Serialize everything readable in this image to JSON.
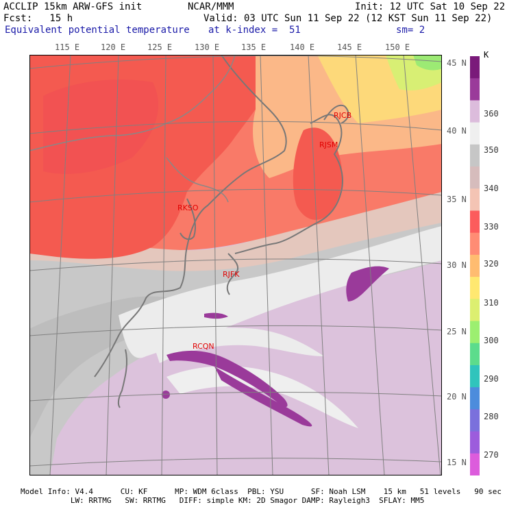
{
  "header": {
    "line1_left": "ACCLIP 15km ARW-GFS init",
    "line1_center": "NCAR/MMM",
    "line1_right": "Init: 12 UTC Sat 10 Sep 22",
    "line2_left": "Fcst:   15 h",
    "line2_right": "Valid: 03 UTC Sun 11 Sep 22 (12 KST Sun 11 Sep 22)",
    "line3_left": "Equivalent potential temperature",
    "line3_center": "at k-index =  51",
    "line3_right": "sm= 2"
  },
  "map": {
    "lon_labels": [
      "115 E",
      "120 E",
      "125 E",
      "130 E",
      "135 E",
      "140 E",
      "145 E",
      "150 E"
    ],
    "lat_labels": [
      "45 N",
      "40 N",
      "35 N",
      "30 N",
      "25 N",
      "20 N",
      "15 N"
    ],
    "stations": [
      {
        "id": "RJCB"
      },
      {
        "id": "RJSM"
      },
      {
        "id": "RKSO"
      },
      {
        "id": "RJFK"
      },
      {
        "id": "RCQN"
      }
    ]
  },
  "colorbar": {
    "unit": "K",
    "labels": [
      "360",
      "350",
      "340",
      "330",
      "320",
      "310",
      "300",
      "290",
      "280",
      "270"
    ],
    "colors": [
      "#7a1a7a",
      "#9a3a9a",
      "#dcbcdc",
      "#efefef",
      "#c6c6c6",
      "#d6bcbc",
      "#f4c4b4",
      "#fc5c5c",
      "#ff8c74",
      "#ffbc70",
      "#ffe870",
      "#dcef70",
      "#9cef70",
      "#5cdc8c",
      "#30c4bc",
      "#4c8cdc",
      "#7a70dc",
      "#9c5cdc",
      "#dc5cdc"
    ]
  },
  "footer": {
    "line1": "Model Info: V4.4      CU: KF      MP: WDM 6class  PBL: YSU      SF: Noah LSM    15 km   51 levels   90 sec",
    "line2": "           LW: RRTMG   SW: RRTMG   DIFF: simple KM: 2D Smagor DAMP: Rayleigh3  SFLAY: MM5"
  }
}
